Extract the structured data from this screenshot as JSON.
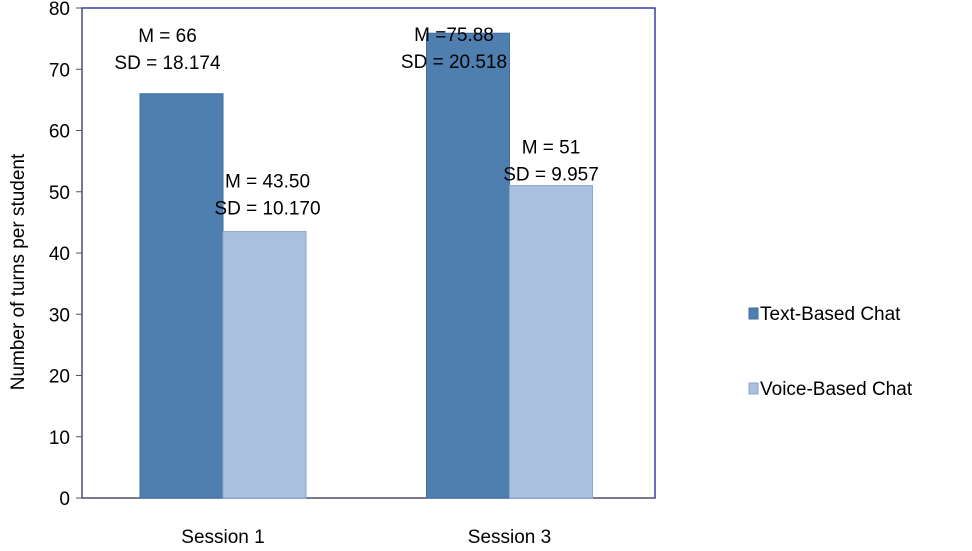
{
  "chart_data": {
    "type": "bar",
    "title": "",
    "xlabel": "",
    "ylabel": "Number of turns per student",
    "categories": [
      "Session 1",
      "Session 3"
    ],
    "ylim": [
      0,
      80
    ],
    "yticks": [
      0,
      10,
      20,
      30,
      40,
      50,
      60,
      70,
      80
    ],
    "grid": false,
    "legend_position": "right",
    "series": [
      {
        "name": "Text-Based Chat",
        "color": "#4f7fae",
        "edge_color": "#3f6f9e",
        "values": [
          66,
          75.88
        ],
        "annotations": [
          [
            "M = 66",
            "SD = 18.174"
          ],
          [
            "M =75.88",
            "SD = 20.518"
          ]
        ]
      },
      {
        "name": "Voice-Based Chat",
        "color": "#a9c0de",
        "edge_color": "#8aa6cb",
        "values": [
          43.5,
          51
        ],
        "annotations": [
          [
            "M = 43.50",
            "SD = 10.170"
          ],
          [
            "M = 51",
            "SD = 9.957"
          ]
        ]
      }
    ],
    "plot_border_color": "#3a3aa8"
  }
}
